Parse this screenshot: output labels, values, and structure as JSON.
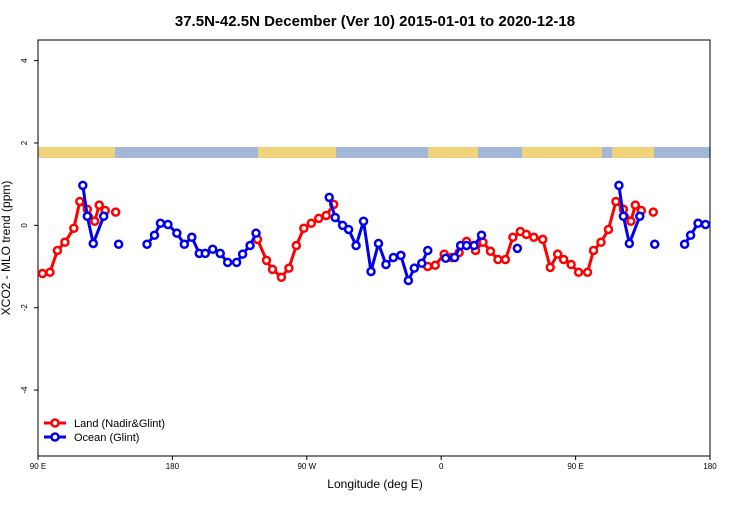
{
  "chart_data": {
    "type": "line",
    "title": "37.5N-42.5N December (Ver 10)   2015-01-01 to 2020-12-18",
    "x_label": "Longitude (deg E)",
    "y_label": "XCO2 - MLO trend (ppm)",
    "xlim": [
      90,
      540
    ],
    "xticks": [
      {
        "value": 90,
        "label": "90 E"
      },
      {
        "value": 180,
        "label": "180"
      },
      {
        "value": 270,
        "label": "90 W"
      },
      {
        "value": 360,
        "label": "0"
      },
      {
        "value": 450,
        "label": "90 E"
      },
      {
        "value": 540,
        "label": "180"
      }
    ],
    "ylim": [
      -5.6,
      4.5
    ],
    "yticks": [
      -4,
      -2,
      0,
      2,
      4
    ],
    "legend": "bottom-left",
    "series": [
      {
        "name": "Land (Nadir&Glint)",
        "color": "#ff0000",
        "x": [
          93,
          98,
          103,
          108,
          114,
          118,
          123,
          128,
          131,
          135,
          null,
          142,
          null,
          237,
          243,
          247,
          253,
          258,
          263,
          268,
          273,
          278,
          283,
          288,
          null,
          351,
          356,
          362,
          367,
          372,
          377,
          383,
          388,
          393,
          398,
          403,
          408,
          413,
          417,
          422,
          428,
          433,
          438,
          442,
          447,
          452,
          458,
          462,
          467,
          472,
          477,
          482,
          487,
          490,
          494,
          null,
          502
        ],
        "values": [
          -1.17,
          -1.14,
          -0.61,
          -0.41,
          -0.07,
          0.58,
          0.39,
          0.1,
          0.49,
          0.36,
          null,
          0.32,
          null,
          -0.34,
          -0.85,
          -1.07,
          -1.26,
          -1.04,
          -0.49,
          -0.07,
          0.05,
          0.17,
          0.24,
          0.51,
          null,
          -1.0,
          -0.97,
          -0.7,
          -0.78,
          -0.66,
          -0.39,
          -0.61,
          -0.41,
          -0.63,
          -0.83,
          -0.83,
          -0.29,
          -0.15,
          -0.22,
          -0.29,
          -0.34,
          -1.02,
          -0.7,
          -0.83,
          -0.95,
          -1.14,
          -1.14,
          -0.61,
          -0.41,
          -0.1,
          0.58,
          0.39,
          0.1,
          0.49,
          0.36,
          null,
          0.32
        ]
      },
      {
        "name": "Ocean (Glint)",
        "color": "#0000ee",
        "x": [
          120,
          123,
          127,
          134,
          null,
          144,
          null,
          163,
          168,
          172,
          177,
          183,
          188,
          193,
          198,
          202,
          207,
          212,
          217,
          223,
          227,
          232,
          236,
          null,
          285,
          289,
          294,
          298,
          303,
          308,
          313,
          318,
          323,
          328,
          333,
          338,
          342,
          347,
          351,
          null,
          363,
          369,
          373,
          377,
          382,
          387,
          null,
          411,
          null,
          479,
          482,
          486,
          493,
          null,
          503,
          null,
          523,
          527,
          532,
          537
        ],
        "values": [
          0.97,
          0.22,
          -0.44,
          0.22,
          null,
          -0.46,
          null,
          -0.46,
          -0.24,
          0.05,
          0.02,
          -0.19,
          -0.46,
          -0.29,
          -0.68,
          -0.68,
          -0.58,
          -0.68,
          -0.9,
          -0.9,
          -0.7,
          -0.49,
          -0.19,
          null,
          0.68,
          0.19,
          0.0,
          -0.1,
          -0.49,
          0.1,
          -1.12,
          -0.44,
          -0.95,
          -0.78,
          -0.73,
          -1.34,
          -1.04,
          -0.92,
          -0.61,
          null,
          -0.8,
          -0.78,
          -0.49,
          -0.49,
          -0.49,
          -0.24,
          null,
          -0.56,
          null,
          0.97,
          0.22,
          -0.44,
          0.22,
          null,
          -0.46,
          null,
          -0.46,
          -0.24,
          0.05,
          0.02
        ]
      }
    ]
  }
}
